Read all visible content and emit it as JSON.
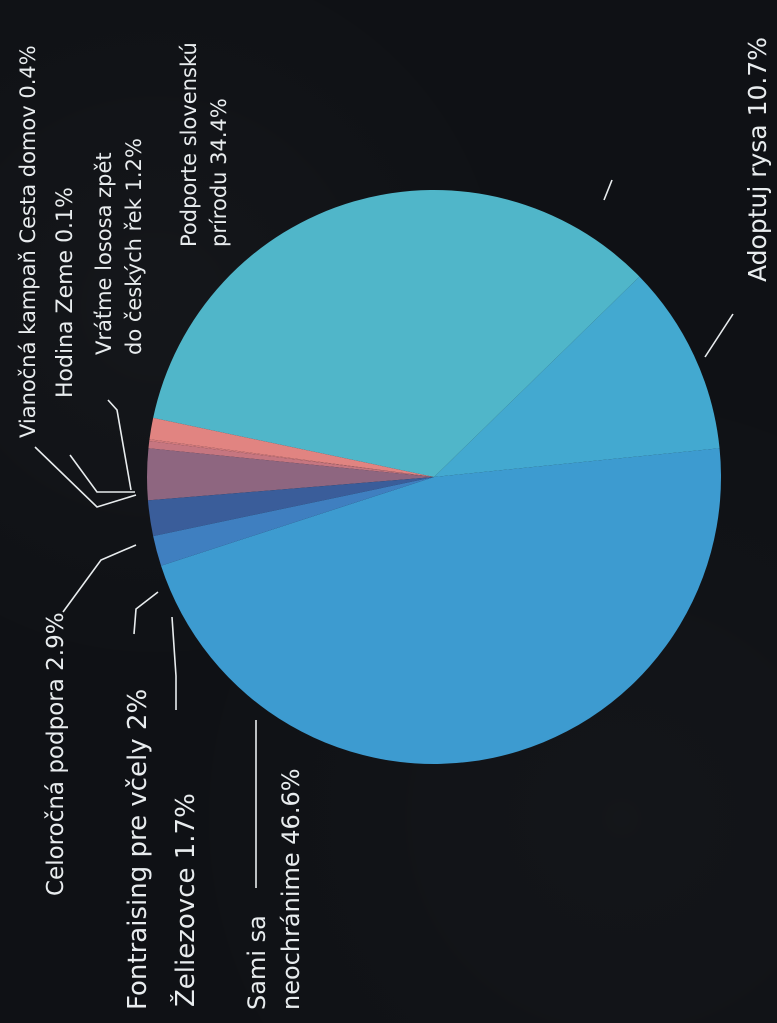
{
  "chart_data": {
    "type": "pie",
    "title": "",
    "slices": [
      {
        "name": "Sami sa neochránime",
        "value": 46.6,
        "color": "#3d9bd0"
      },
      {
        "name": "Adoptuj rysa",
        "value": 10.7,
        "color": "#43a9d0"
      },
      {
        "name": "Podporte slovenskú prírodu",
        "value": 34.4,
        "color": "#50b6c9"
      },
      {
        "name": "Vráťme lososa zpět do českých řek",
        "value": 1.2,
        "color": "#e18481"
      },
      {
        "name": "Hodina Zeme",
        "value": 0.1,
        "color": "#d27a7c"
      },
      {
        "name": "Vianočná kampaň Cesta domov",
        "value": 0.4,
        "color": "#c67680"
      },
      {
        "name": "Celoročná podpora",
        "value": 2.9,
        "color": "#8e6680"
      },
      {
        "name": "Fontraising pre včely",
        "value": 2.0,
        "color": "#3a5d9a"
      },
      {
        "name": "Želiezovce",
        "value": 1.7,
        "color": "#3f7fc0"
      }
    ],
    "labels": [
      {
        "lines": [
          "Sami sa",
          "neochránime 46.6%"
        ]
      },
      {
        "lines": [
          "Adoptuj rysa 10.7%"
        ]
      },
      {
        "lines": [
          "Podporte slovenskú",
          "prírodu 34.4%"
        ]
      },
      {
        "lines": [
          "Vráťme lososa zpět",
          "do českých řek 1.2%"
        ]
      },
      {
        "lines": [
          "Hodina Zeme 0.1%"
        ]
      },
      {
        "lines": [
          "Vianočná kampaň Cesta domov 0.4%"
        ]
      },
      {
        "lines": [
          "Celoročná podpora 2.9%"
        ]
      },
      {
        "lines": [
          "Fontraising pre včely 2%"
        ]
      },
      {
        "lines": [
          "Želiezovce 1.7%"
        ]
      }
    ],
    "legend": "none"
  }
}
